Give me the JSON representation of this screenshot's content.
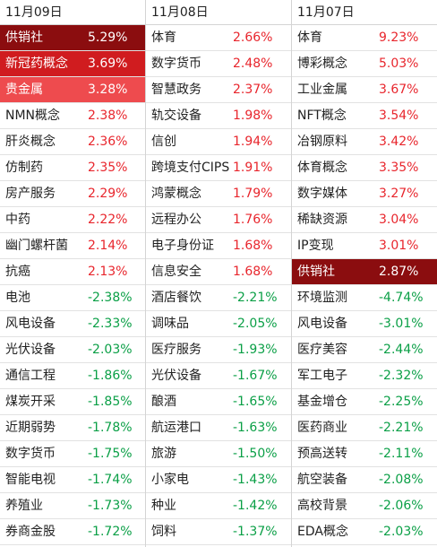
{
  "columns": [
    {
      "date": "11月09日",
      "rows": [
        {
          "name": "供销社",
          "pct": "5.29%",
          "dir": "up",
          "hl": "hl1"
        },
        {
          "name": "新冠药概念",
          "pct": "3.69%",
          "dir": "up",
          "hl": "hl2"
        },
        {
          "name": "贵金属",
          "pct": "3.28%",
          "dir": "up",
          "hl": "hl3"
        },
        {
          "name": "NMN概念",
          "pct": "2.38%",
          "dir": "up"
        },
        {
          "name": "肝炎概念",
          "pct": "2.36%",
          "dir": "up"
        },
        {
          "name": "仿制药",
          "pct": "2.35%",
          "dir": "up"
        },
        {
          "name": "房产服务",
          "pct": "2.29%",
          "dir": "up"
        },
        {
          "name": "中药",
          "pct": "2.22%",
          "dir": "up"
        },
        {
          "name": "幽门螺杆菌",
          "pct": "2.14%",
          "dir": "up"
        },
        {
          "name": "抗癌",
          "pct": "2.13%",
          "dir": "up"
        },
        {
          "name": "电池",
          "pct": "-2.38%",
          "dir": "down"
        },
        {
          "name": "风电设备",
          "pct": "-2.33%",
          "dir": "down"
        },
        {
          "name": "光伏设备",
          "pct": "-2.03%",
          "dir": "down"
        },
        {
          "name": "通信工程",
          "pct": "-1.86%",
          "dir": "down"
        },
        {
          "name": "煤炭开采",
          "pct": "-1.85%",
          "dir": "down"
        },
        {
          "name": "近期弱势",
          "pct": "-1.78%",
          "dir": "down"
        },
        {
          "name": "数字货币",
          "pct": "-1.75%",
          "dir": "down"
        },
        {
          "name": "智能电视",
          "pct": "-1.74%",
          "dir": "down"
        },
        {
          "name": "养殖业",
          "pct": "-1.73%",
          "dir": "down"
        },
        {
          "name": "券商金股",
          "pct": "-1.72%",
          "dir": "down"
        }
      ]
    },
    {
      "date": "11月08日",
      "rows": [
        {
          "name": "体育",
          "pct": "2.66%",
          "dir": "up"
        },
        {
          "name": "数字货币",
          "pct": "2.48%",
          "dir": "up"
        },
        {
          "name": "智慧政务",
          "pct": "2.37%",
          "dir": "up"
        },
        {
          "name": "轨交设备",
          "pct": "1.98%",
          "dir": "up"
        },
        {
          "name": "信创",
          "pct": "1.94%",
          "dir": "up"
        },
        {
          "name": "跨境支付CIPS",
          "pct": "1.91%",
          "dir": "up"
        },
        {
          "name": "鸿蒙概念",
          "pct": "1.79%",
          "dir": "up"
        },
        {
          "name": "远程办公",
          "pct": "1.76%",
          "dir": "up"
        },
        {
          "name": "电子身份证",
          "pct": "1.68%",
          "dir": "up"
        },
        {
          "name": "信息安全",
          "pct": "1.68%",
          "dir": "up"
        },
        {
          "name": "酒店餐饮",
          "pct": "-2.21%",
          "dir": "down"
        },
        {
          "name": "调味品",
          "pct": "-2.05%",
          "dir": "down"
        },
        {
          "name": "医疗服务",
          "pct": "-1.93%",
          "dir": "down"
        },
        {
          "name": "光伏设备",
          "pct": "-1.67%",
          "dir": "down"
        },
        {
          "name": "酿酒",
          "pct": "-1.65%",
          "dir": "down"
        },
        {
          "name": "航运港口",
          "pct": "-1.63%",
          "dir": "down"
        },
        {
          "name": "旅游",
          "pct": "-1.50%",
          "dir": "down"
        },
        {
          "name": "小家电",
          "pct": "-1.43%",
          "dir": "down"
        },
        {
          "name": "种业",
          "pct": "-1.42%",
          "dir": "down"
        },
        {
          "name": "饲料",
          "pct": "-1.37%",
          "dir": "down"
        }
      ]
    },
    {
      "date": "11月07日",
      "rows": [
        {
          "name": "体育",
          "pct": "9.23%",
          "dir": "up"
        },
        {
          "name": "博彩概念",
          "pct": "5.03%",
          "dir": "up"
        },
        {
          "name": "工业金属",
          "pct": "3.67%",
          "dir": "up"
        },
        {
          "name": "NFT概念",
          "pct": "3.54%",
          "dir": "up"
        },
        {
          "name": "冶钢原料",
          "pct": "3.42%",
          "dir": "up"
        },
        {
          "name": "体育概念",
          "pct": "3.35%",
          "dir": "up"
        },
        {
          "name": "数字媒体",
          "pct": "3.27%",
          "dir": "up"
        },
        {
          "name": "稀缺资源",
          "pct": "3.04%",
          "dir": "up"
        },
        {
          "name": "IP变现",
          "pct": "3.01%",
          "dir": "up"
        },
        {
          "name": "供销社",
          "pct": "2.87%",
          "dir": "up",
          "hl": "hl1"
        },
        {
          "name": "环境监测",
          "pct": "-4.74%",
          "dir": "down"
        },
        {
          "name": "风电设备",
          "pct": "-3.01%",
          "dir": "down"
        },
        {
          "name": "医疗美容",
          "pct": "-2.44%",
          "dir": "down"
        },
        {
          "name": "军工电子",
          "pct": "-2.32%",
          "dir": "down"
        },
        {
          "name": "基金增仓",
          "pct": "-2.25%",
          "dir": "down"
        },
        {
          "name": "医药商业",
          "pct": "-2.21%",
          "dir": "down"
        },
        {
          "name": "预高送转",
          "pct": "-2.11%",
          "dir": "down"
        },
        {
          "name": "航空装备",
          "pct": "-2.08%",
          "dir": "down"
        },
        {
          "name": "高校背景",
          "pct": "-2.06%",
          "dir": "down"
        },
        {
          "name": "EDA概念",
          "pct": "-2.03%",
          "dir": "down"
        }
      ]
    }
  ],
  "colors": {
    "up": "#e8262d",
    "down": "#0a9f46",
    "highlight_dark": "#8b0d0f",
    "highlight_mid": "#d01c1f",
    "highlight_light": "#ee4b4e"
  }
}
